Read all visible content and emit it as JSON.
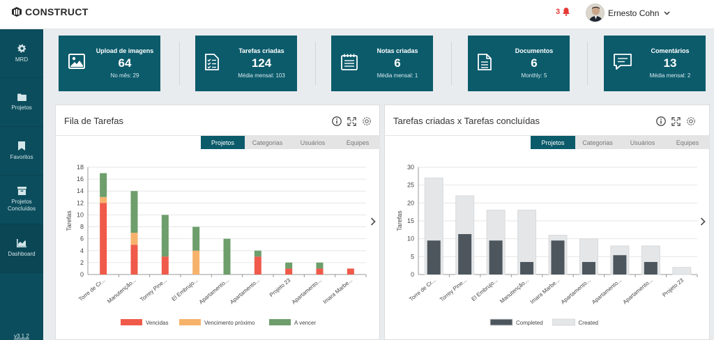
{
  "app": {
    "logo_text": "CONSTRUCT",
    "version": "v3.1.2"
  },
  "header": {
    "notification_count": "3",
    "user_name": "Ernesto Cohn"
  },
  "sidebar": {
    "items": [
      {
        "label": "MRD",
        "icon": "gear-icon"
      },
      {
        "label": "Projetos",
        "icon": "folder-icon"
      },
      {
        "label": "Favoritos",
        "icon": "bookmark-icon"
      },
      {
        "label": "Projetos Concluídos",
        "icon": "archive-icon"
      },
      {
        "label": "Dashboard",
        "icon": "area-chart-icon"
      }
    ]
  },
  "stats": [
    {
      "title": "Upload de imagens",
      "value": "64",
      "sub": "No mês: 29",
      "icon": "image-icon"
    },
    {
      "title": "Tarefas criadas",
      "value": "124",
      "sub": "Média mensal: 103",
      "icon": "checklist-icon"
    },
    {
      "title": "Notas criadas",
      "value": "6",
      "sub": "Média mensal: 1",
      "icon": "notepad-icon"
    },
    {
      "title": "Documentos",
      "value": "6",
      "sub": "Monthly: 5",
      "icon": "document-icon"
    },
    {
      "title": "Comentários",
      "value": "13",
      "sub": "Média mensal: 2",
      "icon": "comment-icon"
    }
  ],
  "panels": {
    "left": {
      "title": "Fila de Tarefas",
      "tabs": [
        "Projetos",
        "Categorias",
        "Usuários",
        "Equipes"
      ],
      "active_tab": 0
    },
    "right": {
      "title": "Tarefas criadas x Tarefas concluídas",
      "tabs": [
        "Projetos",
        "Categorias",
        "Usuários",
        "Equipes"
      ],
      "active_tab": 0
    }
  },
  "colors": {
    "brand": "#0b5b6b",
    "sidebar": "#0b4d5c",
    "overdue": "#f05a4a",
    "due_soon": "#f6b26b",
    "to_due": "#6d9e6b",
    "completed": "#4c565c",
    "created": "#e4e6e8"
  },
  "chart_data": [
    {
      "type": "bar",
      "stacked": true,
      "title": "",
      "ylabel": "Tarefas",
      "xlabel": "",
      "ylim": [
        0,
        18
      ],
      "yticks": [
        0,
        2,
        4,
        6,
        8,
        10,
        12,
        14,
        16,
        18
      ],
      "categories": [
        "Torre de Cr...",
        "Manutenção...",
        "Torrey Pine...",
        "El Embrujo...",
        "Apartamento...",
        "Apartamento...",
        "Projeto 23",
        "Apartamento...",
        "Imara Marbe..."
      ],
      "series": [
        {
          "name": "Vencidas",
          "color": "#f05a4a",
          "values": [
            12,
            5,
            3,
            0,
            0,
            3,
            1,
            1,
            1
          ]
        },
        {
          "name": "Vencimento próximo",
          "color": "#f6b26b",
          "values": [
            1,
            2,
            0,
            4,
            0,
            0,
            0,
            0,
            0
          ]
        },
        {
          "name": "A vencer",
          "color": "#6d9e6b",
          "values": [
            4,
            7,
            7,
            4,
            6,
            1,
            1,
            1,
            0
          ]
        }
      ],
      "legend": "bottom",
      "grid": true
    },
    {
      "type": "bar",
      "overlapped": true,
      "title": "",
      "ylabel": "Tarefas",
      "xlabel": "",
      "ylim": [
        0,
        30
      ],
      "yticks": [
        0,
        5,
        10,
        15,
        20,
        25,
        30
      ],
      "categories": [
        "Torre de Cr...",
        "Torrey Pine...",
        "El Embrujo...",
        "Manutenção...",
        "Imara Marbe...",
        "Apartamento...",
        "Apartamento...",
        "Apartamento...",
        "Projeto 23"
      ],
      "series": [
        {
          "name": "Completed",
          "color": "#4c565c",
          "values": [
            9.5,
            11.3,
            9.5,
            3.5,
            9.5,
            3.5,
            5.4,
            3.5,
            0
          ]
        },
        {
          "name": "Created",
          "color": "#e4e6e8",
          "values": [
            27,
            22,
            18,
            18,
            11,
            10,
            8,
            8,
            2
          ]
        }
      ],
      "legend": "bottom",
      "grid": true
    }
  ]
}
